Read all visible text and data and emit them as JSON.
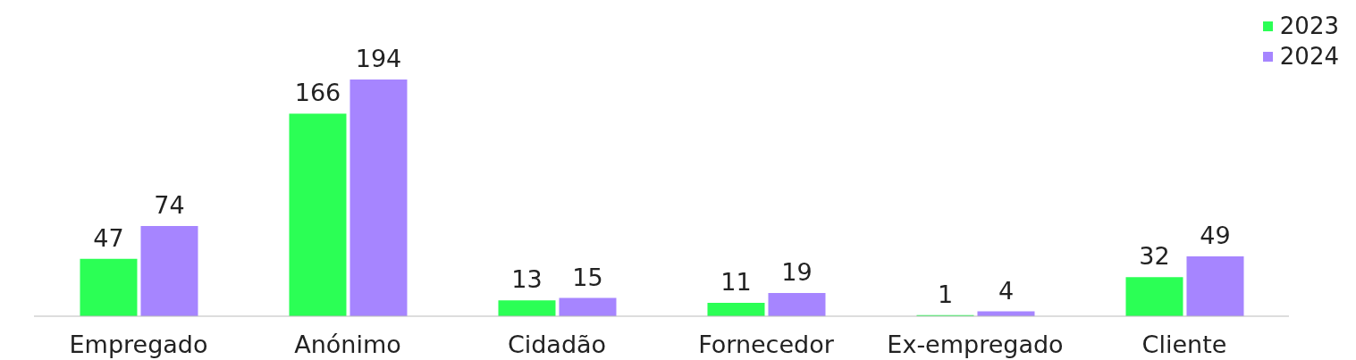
{
  "chart_data": {
    "type": "bar",
    "categories": [
      "Empregado",
      "Anónimo",
      "Cidadão",
      "Fornecedor",
      "Ex-empregado",
      "Cliente"
    ],
    "series": [
      {
        "name": "2023",
        "color": "#2bff55",
        "values": [
          47,
          166,
          13,
          11,
          1,
          32
        ]
      },
      {
        "name": "2024",
        "color": "#a685ff",
        "values": [
          74,
          194,
          15,
          19,
          4,
          49
        ]
      }
    ],
    "data_labels": true,
    "legend": "top right"
  }
}
